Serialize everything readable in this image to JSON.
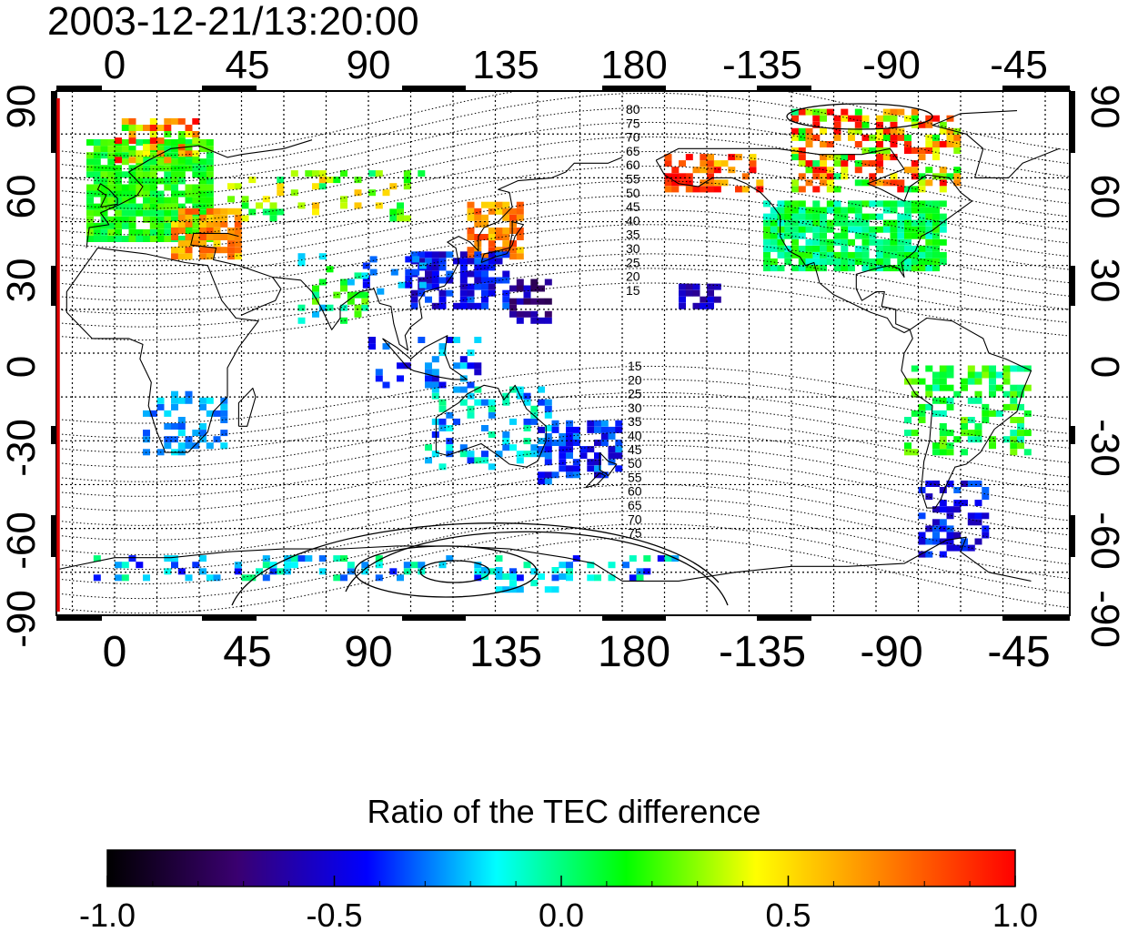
{
  "timestamp": "2003-12-21/13:20:00",
  "axes": {
    "longitude_ticks": [
      "0",
      "45",
      "90",
      "135",
      "180",
      "-135",
      "-90",
      "-45"
    ],
    "latitude_ticks_left": [
      "90",
      "60",
      "30",
      "0",
      "-30",
      "-60",
      "-90"
    ],
    "latitude_ticks_right": [
      "90",
      "60",
      "30",
      "0",
      "-30",
      "-60",
      "-90"
    ]
  },
  "contours": {
    "north_labels": [
      "80",
      "75",
      "70",
      "65",
      "60",
      "55",
      "50",
      "45",
      "40",
      "35",
      "30",
      "25",
      "20",
      "15"
    ],
    "south_labels": [
      "15",
      "20",
      "25",
      "30",
      "35",
      "40",
      "45",
      "50",
      "55",
      "60",
      "65",
      "70",
      "75"
    ]
  },
  "colorbar": {
    "title": "Ratio of the TEC difference",
    "tick_labels": [
      "-1.0",
      "-0.5",
      "0.0",
      "0.5",
      "1.0"
    ],
    "range": [
      -1.0,
      1.0
    ],
    "colors": [
      "#000000",
      "#3a0070",
      "#0000ff",
      "#00ffff",
      "#00ff00",
      "#ffff00",
      "#ff8000",
      "#ff0000"
    ]
  },
  "map": {
    "frame_color": "#000000",
    "marker_line_color": "#dd0000"
  }
}
